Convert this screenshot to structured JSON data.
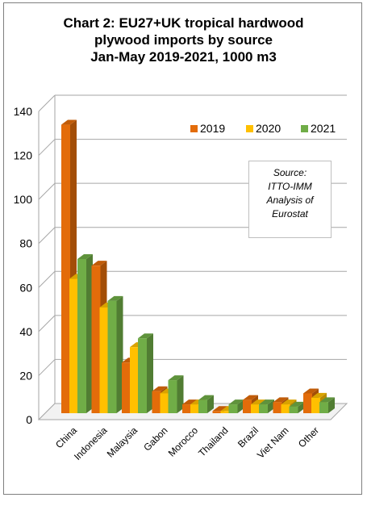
{
  "chart_data": {
    "type": "bar",
    "title_lines": [
      "Chart 2: EU27+UK tropical  hardwood",
      "plywood imports by source",
      "Jan-May 2019-2021, 1000 m3"
    ],
    "categories": [
      "China",
      "Indonesia",
      "Malaysia",
      "Gabon",
      "Morocco",
      "Thailand",
      "Brazil",
      "Viet Nam",
      "Other"
    ],
    "series": [
      {
        "name": "2019",
        "color": "#e36c0a",
        "values": [
          131,
          67,
          23,
          10,
          4,
          1,
          6,
          5,
          9
        ]
      },
      {
        "name": "2020",
        "color": "#ffc000",
        "values": [
          61,
          48,
          30,
          9,
          4,
          1,
          4,
          4,
          7
        ]
      },
      {
        "name": "2021",
        "color": "#70ad47",
        "values": [
          70,
          51,
          34,
          15,
          6,
          4,
          4,
          3,
          5
        ]
      }
    ],
    "y_ticks": [
      0,
      20,
      40,
      60,
      80,
      100,
      120,
      140
    ],
    "ylim": [
      0,
      140
    ],
    "grid": true,
    "legend_position": "top-right",
    "annotation_lines": [
      "Source:",
      "ITTO-IMM",
      "Analysis of",
      "Eurostat"
    ]
  }
}
